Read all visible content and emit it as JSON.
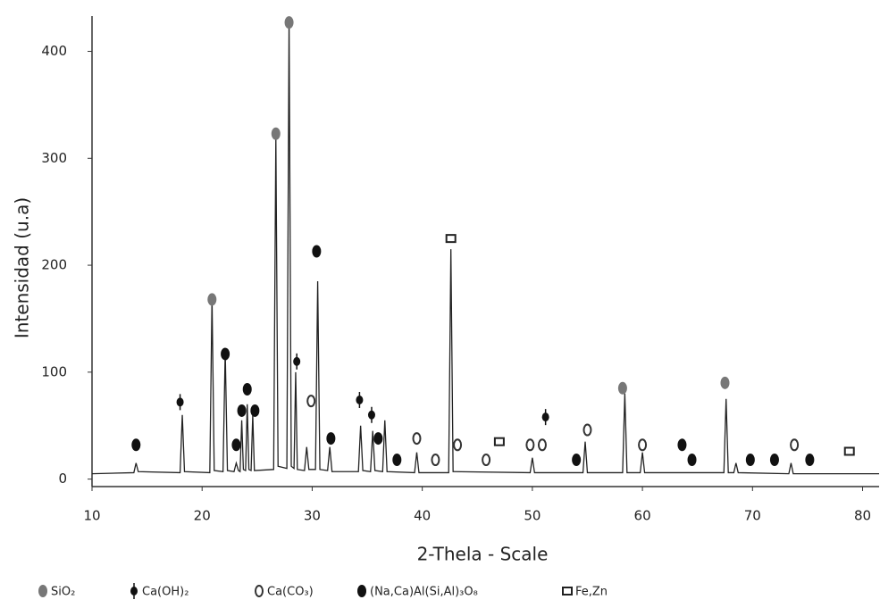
{
  "chart_data": {
    "type": "line",
    "x_label": "2-Thela - Scale",
    "y_label": "Intensidad (u.a)",
    "xlim": [
      10,
      81.5
    ],
    "ylim": [
      -7,
      433
    ],
    "xticks": [
      10,
      20,
      30,
      40,
      50,
      60,
      70,
      80
    ],
    "yticks": [
      0,
      100,
      200,
      300,
      400
    ],
    "series": [
      {
        "color": "#222222",
        "x": [
          10,
          13.8,
          14.0,
          14.2,
          18.0,
          18.2,
          18.4,
          20.7,
          20.9,
          21.1,
          21.9,
          22.1,
          22.3,
          22.9,
          23.1,
          23.3,
          23.45,
          23.6,
          23.75,
          23.95,
          24.1,
          24.25,
          24.45,
          24.6,
          24.75,
          26.5,
          26.7,
          26.9,
          27.7,
          27.9,
          28.1,
          28.35,
          28.5,
          28.65,
          29.3,
          29.5,
          29.7,
          30.3,
          30.5,
          30.7,
          31.4,
          31.6,
          31.8,
          34.2,
          34.4,
          34.6,
          35.3,
          35.5,
          35.7,
          36.4,
          36.6,
          36.8,
          39.3,
          39.5,
          39.7,
          42.4,
          42.6,
          42.8,
          49.8,
          50.0,
          50.2,
          54.6,
          54.8,
          55.0,
          58.2,
          58.4,
          58.6,
          59.8,
          60.0,
          60.2,
          67.4,
          67.6,
          67.8,
          68.3,
          68.5,
          68.7,
          73.3,
          73.5,
          73.7,
          81.5
        ],
        "values": [
          5,
          6,
          15,
          7,
          6,
          60,
          7,
          6,
          170,
          8,
          7,
          120,
          8,
          7,
          15,
          8,
          7,
          55,
          9,
          8,
          70,
          9,
          8,
          60,
          8,
          9,
          320,
          12,
          10,
          430,
          12,
          10,
          100,
          9,
          8,
          30,
          9,
          9,
          185,
          9,
          8,
          30,
          7,
          7,
          50,
          8,
          7,
          45,
          8,
          7,
          55,
          7,
          6,
          25,
          6,
          6,
          215,
          7,
          6,
          20,
          6,
          6,
          35,
          6,
          6,
          80,
          6,
          6,
          25,
          6,
          6,
          75,
          6,
          6,
          15,
          6,
          5,
          15,
          5,
          5
        ]
      }
    ],
    "markers": [
      {
        "name": "SiO₂",
        "color": "#777777",
        "shape": "filled",
        "x": [
          26.7,
          27.9,
          20.9,
          58.2,
          67.5
        ],
        "values": [
          323,
          427,
          168,
          85,
          90
        ]
      },
      {
        "name": "Ca(OH)₂",
        "color": "#111111",
        "shape": "stick",
        "x": [
          18.0,
          34.3,
          35.4,
          51.2,
          28.6
        ],
        "values": [
          72,
          74,
          60,
          58,
          110
        ]
      },
      {
        "name": "Ca(CO₃)",
        "color": "#333333",
        "shape": "open",
        "x": [
          29.9,
          39.5,
          43.2,
          55.0,
          60.0,
          73.8,
          41.2,
          45.8,
          49.8,
          50.9
        ],
        "values": [
          73,
          38,
          32,
          46,
          32,
          32,
          18,
          18,
          32,
          32
        ]
      },
      {
        "name": "(Na,Ca)Al(Si,Al)₃O₈",
        "color": "#111111",
        "shape": "filled",
        "x": [
          14.0,
          22.1,
          23.1,
          23.6,
          24.1,
          24.8,
          30.4,
          31.7,
          36.0,
          37.7,
          54.0,
          63.6,
          64.5,
          69.8,
          72.0,
          75.2
        ],
        "values": [
          32,
          117,
          32,
          64,
          84,
          64,
          213,
          38,
          38,
          18,
          18,
          32,
          18,
          18,
          18,
          18
        ]
      },
      {
        "name": "Fe,Zn",
        "color": "#222222",
        "shape": "square",
        "x": [
          42.6,
          47.0,
          78.8
        ],
        "values": [
          225,
          35,
          26
        ]
      }
    ]
  }
}
